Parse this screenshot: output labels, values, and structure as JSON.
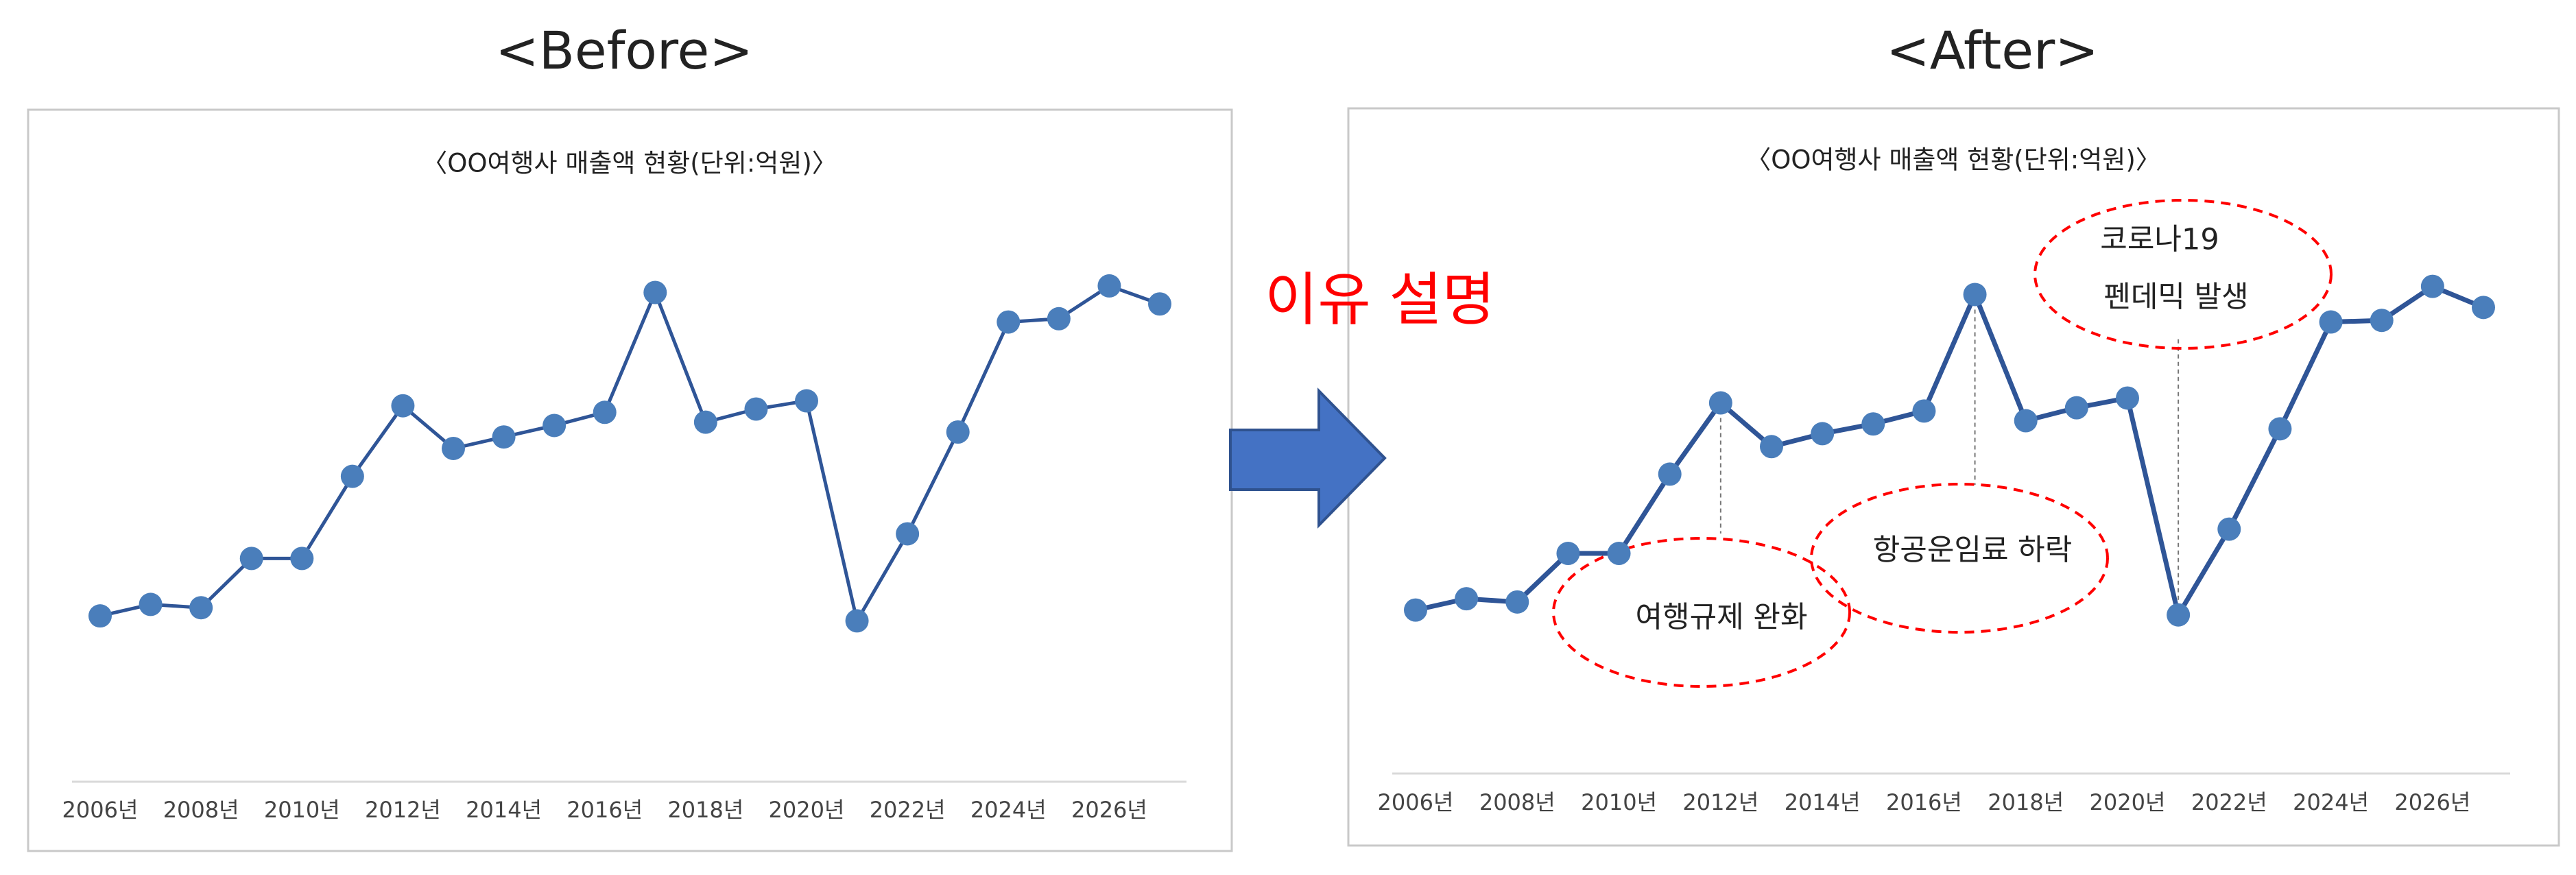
{
  "headings": {
    "before": "<Before>",
    "after": "<After>",
    "reason": "이유 설명"
  },
  "chart_data": [
    {
      "type": "line",
      "title": "〈OO여행사 매출액 현황(단위:억원)〉",
      "categories": [
        "2006년",
        null,
        "2008년",
        null,
        "2010년",
        null,
        "2012년",
        null,
        "2014년",
        null,
        "2016년",
        null,
        "2018년",
        null,
        "2020년",
        null,
        "2022년",
        null,
        "2024년",
        null,
        "2026년",
        null
      ],
      "values": [
        101,
        108,
        106,
        136,
        136,
        186,
        229,
        203,
        210,
        217,
        225,
        298,
        219,
        227,
        232,
        98,
        151,
        213,
        280,
        282,
        302,
        291
      ],
      "color": "#4a7ebb",
      "line_color": "#2f5597",
      "ylim": [
        0,
        350
      ]
    },
    {
      "type": "line",
      "title": "〈OO여행사 매출액 현황(단위:억원)〉",
      "categories": [
        "2006년",
        null,
        "2008년",
        null,
        "2010년",
        null,
        "2012년",
        null,
        "2014년",
        null,
        "2016년",
        null,
        "2018년",
        null,
        "2020년",
        null,
        "2022년",
        null,
        "2024년",
        null,
        "2026년",
        null
      ],
      "values": [
        101,
        108,
        106,
        136,
        136,
        185,
        229,
        202,
        210,
        216,
        224,
        296,
        218,
        226,
        232,
        98,
        151,
        213,
        279,
        280,
        301,
        288
      ],
      "color": "#4a7ebb",
      "line_color": "#2f5597",
      "ylim": [
        0,
        350
      ],
      "annotations": [
        "여행규제 완화",
        "항공운임료 하락",
        [
          "코로나19",
          "펜데믹 발생"
        ]
      ]
    }
  ]
}
